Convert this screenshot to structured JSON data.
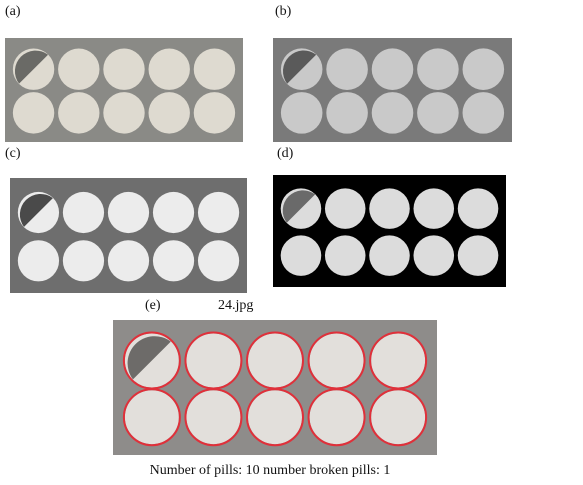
{
  "panels": [
    {
      "label": "(a)"
    },
    {
      "label": "(b)"
    },
    {
      "label": "(c)"
    },
    {
      "label": "(d)"
    },
    {
      "label": "(e)",
      "filename": "24.jpg"
    }
  ],
  "caption": "Number of pills: 10 number broken pills: 1"
}
